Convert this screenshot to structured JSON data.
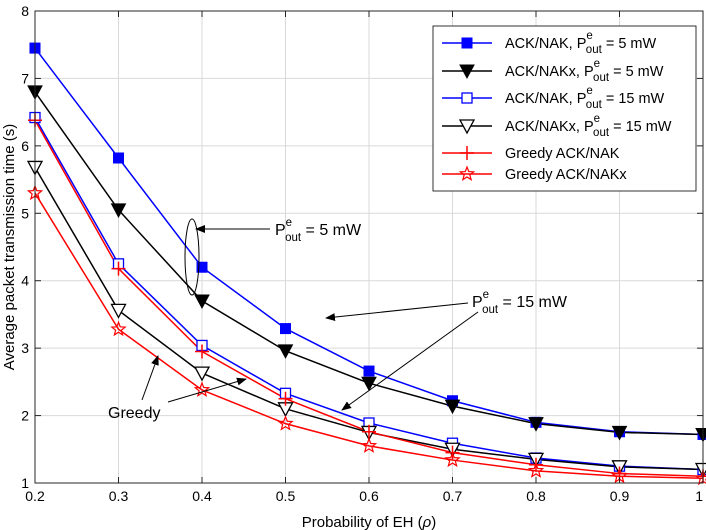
{
  "chart_data": {
    "type": "line",
    "title": "",
    "xlabel": "Probability of EH (ρ)",
    "xlabel_text": "Probability of EH (",
    "xlabel_symbol": "ρ",
    "xlabel_close": ")",
    "ylabel": "Average packet transmission time (s)",
    "xlim": [
      0.2,
      1
    ],
    "ylim": [
      1,
      8
    ],
    "xticks": [
      0.2,
      0.3,
      0.4,
      0.5,
      0.6,
      0.7,
      0.8,
      0.9,
      1
    ],
    "xtick_labels": [
      "0.2",
      "0.3",
      "0.4",
      "0.5",
      "0.6",
      "0.7",
      "0.8",
      "0.9",
      "1"
    ],
    "yticks": [
      1,
      2,
      3,
      4,
      5,
      6,
      7,
      8
    ],
    "ytick_labels": [
      "1",
      "2",
      "3",
      "4",
      "5",
      "6",
      "7",
      "8"
    ],
    "grid": true,
    "legend_position": "top-right",
    "x": [
      0.2,
      0.3,
      0.4,
      0.5,
      0.6,
      0.7,
      0.8,
      0.9,
      1
    ],
    "series": [
      {
        "name": "ACK/NAK, P_out^e = 5 mW",
        "legend_main": "ACK/NAK, P",
        "legend_sub": "out",
        "legend_sup": "e",
        "legend_tail": " = 5 mW",
        "color": "#0000ff",
        "marker": "square-filled",
        "values": [
          7.45,
          5.82,
          4.2,
          3.29,
          2.66,
          2.22,
          1.9,
          1.76,
          1.72
        ]
      },
      {
        "name": "ACK/NAKx, P_out^e = 5 mW",
        "legend_main": "ACK/NAKx, P",
        "legend_sub": "out",
        "legend_sup": "e",
        "legend_tail": " = 5 mW",
        "color": "#000000",
        "marker": "triangle-down-filled",
        "values": [
          6.8,
          5.05,
          3.7,
          2.96,
          2.48,
          2.14,
          1.88,
          1.75,
          1.72
        ]
      },
      {
        "name": "ACK/NAK, P_out^e = 15 mW",
        "legend_main": "ACK/NAK, P",
        "legend_sub": "out",
        "legend_sup": "e",
        "legend_tail": " = 15 mW",
        "color": "#0000ff",
        "marker": "square-open",
        "values": [
          6.42,
          4.25,
          3.04,
          2.33,
          1.89,
          1.59,
          1.37,
          1.25,
          1.2
        ]
      },
      {
        "name": "ACK/NAKx, P_out^e = 15 mW",
        "legend_main": "ACK/NAKx, P",
        "legend_sub": "out",
        "legend_sup": "e",
        "legend_tail": " = 15 mW",
        "color": "#000000",
        "marker": "triangle-down-open",
        "values": [
          5.68,
          3.56,
          2.63,
          2.1,
          1.75,
          1.5,
          1.35,
          1.24,
          1.2
        ]
      },
      {
        "name": "Greedy ACK/NAK",
        "legend_main": "Greedy ACK/NAK",
        "legend_sub": "",
        "legend_sup": "",
        "legend_tail": "",
        "color": "#ff0000",
        "marker": "plus",
        "values": [
          6.38,
          4.18,
          2.95,
          2.25,
          1.76,
          1.45,
          1.27,
          1.14,
          1.1
        ]
      },
      {
        "name": "Greedy ACK/NAKx",
        "legend_main": "Greedy ACK/NAKx",
        "legend_sub": "",
        "legend_sup": "",
        "legend_tail": "",
        "color": "#ff0000",
        "marker": "star",
        "values": [
          5.3,
          3.28,
          2.38,
          1.88,
          1.55,
          1.34,
          1.18,
          1.1,
          1.07
        ]
      }
    ],
    "annotations": {
      "p5": {
        "main": "P",
        "sup": "e",
        "sub": "out",
        "tail": " = 5 mW"
      },
      "p15": {
        "main": "P",
        "sup": "e",
        "sub": "out",
        "tail": " = 15 mW"
      },
      "greedy": "Greedy"
    }
  }
}
